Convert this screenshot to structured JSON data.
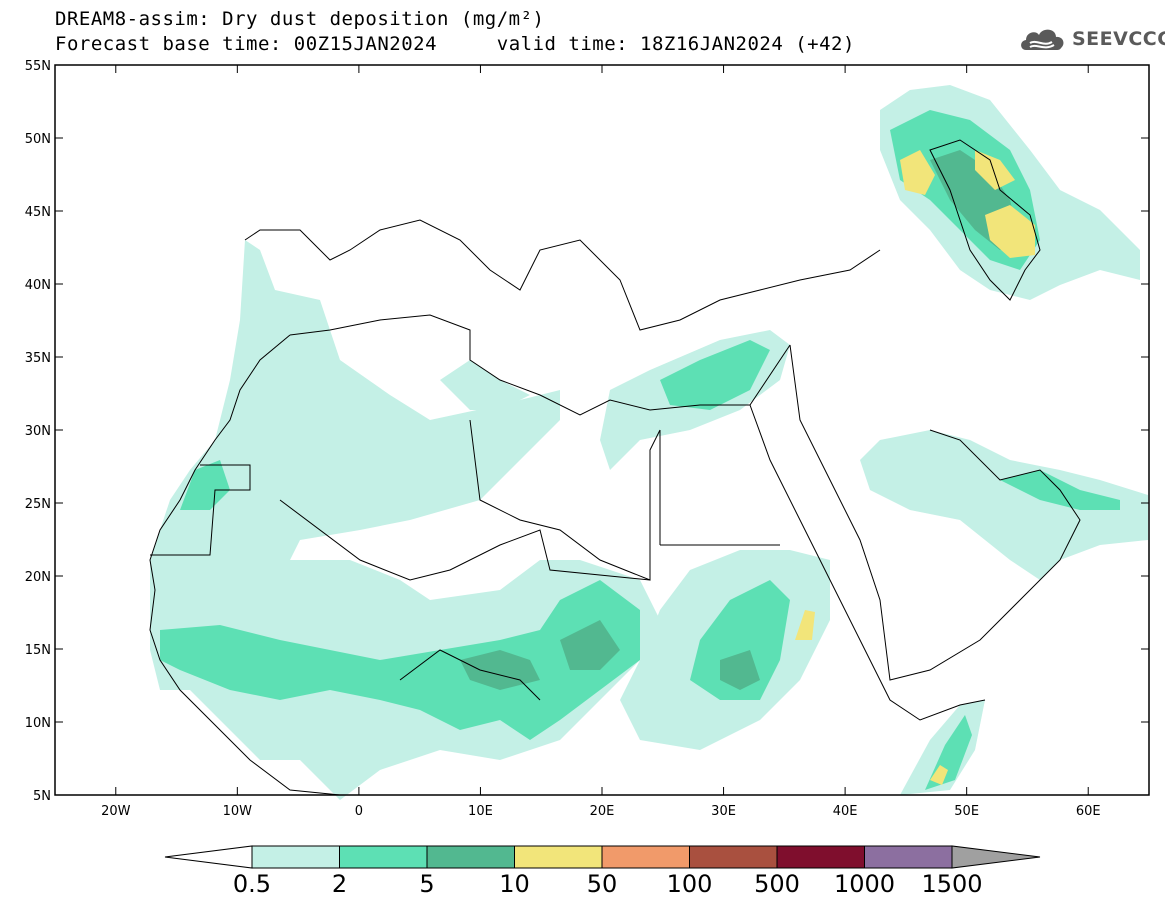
{
  "header": {
    "title": "DREAM8-assim: Dry dust deposition (mg/m²)",
    "base_time_label": "Forecast base time: 00Z15JAN2024",
    "valid_time_label": "valid time: 18Z16JAN2024 (+42)"
  },
  "logo": {
    "text": "SEEVCCC",
    "icon": "cloud-logo-icon"
  },
  "map": {
    "lat_labels": [
      "55N",
      "50N",
      "45N",
      "40N",
      "35N",
      "30N",
      "25N",
      "20N",
      "15N",
      "10N",
      "5N"
    ],
    "lon_labels": [
      "20W",
      "10W",
      "0",
      "10E",
      "20E",
      "30E",
      "40E",
      "50E",
      "60E"
    ],
    "lat_values": [
      55,
      50,
      45,
      40,
      35,
      30,
      25,
      20,
      15,
      10,
      5
    ],
    "lon_values": [
      -20,
      -10,
      0,
      10,
      20,
      30,
      40,
      50,
      60
    ],
    "extent": {
      "lon_min": -25,
      "lon_max": 65,
      "lat_min": 5,
      "lat_max": 55
    }
  },
  "colorbar": {
    "labels": [
      "0.5",
      "2",
      "5",
      "10",
      "50",
      "100",
      "500",
      "1000",
      "1500"
    ],
    "colors": [
      "#c4f0e6",
      "#5de0b4",
      "#52b890",
      "#f2e57a",
      "#f19a6a",
      "#a9503f",
      "#7f0e2d",
      "#8c6fa0",
      "#a0a0a0"
    ],
    "under_color": "#ffffff",
    "over_color": "#a0a0a0"
  }
}
